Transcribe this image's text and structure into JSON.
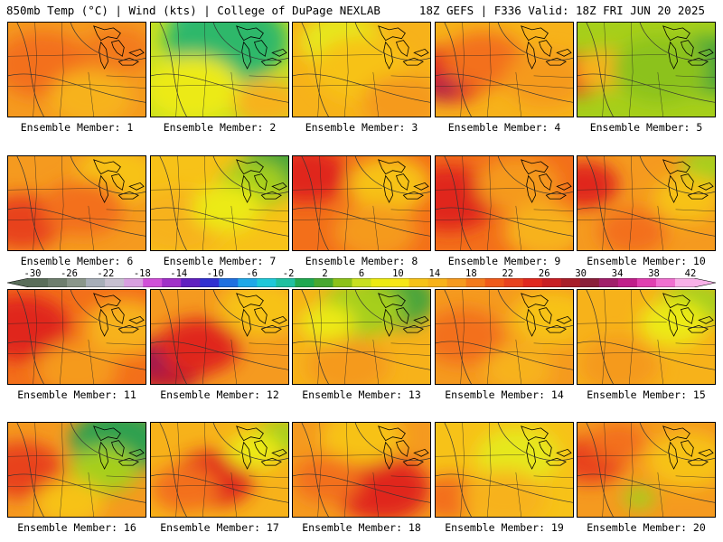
{
  "header": {
    "left": "850mb Temp (°C) | Wind (kts) | College of DuPage NEXLAB",
    "right": "18Z GEFS | F336 Valid: 18Z FRI JUN 20 2025"
  },
  "member_label_prefix": "Ensemble Member: ",
  "members": [
    {
      "label": "Ensemble Member: 1",
      "base": "#f59a1f",
      "blobs": [
        [
          "#f36f1a",
          0.25,
          0.45,
          0.35
        ],
        [
          "#f7b21a",
          0.6,
          0.8,
          0.3
        ],
        [
          "#f37a1c",
          0.8,
          0.3,
          0.25
        ]
      ]
    },
    {
      "label": "Ensemble Member: 2",
      "base": "#c8e020",
      "blobs": [
        [
          "#20c8d8",
          0.5,
          0.0,
          0.35
        ],
        [
          "#2fb86a",
          0.55,
          0.2,
          0.45
        ],
        [
          "#ecea12",
          0.3,
          0.7,
          0.35
        ],
        [
          "#f7b21a",
          0.85,
          0.85,
          0.25
        ]
      ]
    },
    {
      "label": "Ensemble Member: 3",
      "base": "#f7b21a",
      "blobs": [
        [
          "#e6e81a",
          0.35,
          0.2,
          0.3
        ],
        [
          "#f7c218",
          0.5,
          0.5,
          0.35
        ],
        [
          "#f59a1f",
          0.8,
          0.85,
          0.3
        ]
      ]
    },
    {
      "label": "Ensemble Member: 4",
      "base": "#f7b21a",
      "blobs": [
        [
          "#e02a22",
          0.1,
          0.55,
          0.3
        ],
        [
          "#b0204a",
          0.05,
          0.7,
          0.12
        ],
        [
          "#f36f1a",
          0.35,
          0.4,
          0.3
        ],
        [
          "#f59a1f",
          0.8,
          0.6,
          0.3
        ]
      ]
    },
    {
      "label": "Ensemble Member: 5",
      "base": "#a6cf1a",
      "blobs": [
        [
          "#e83a1e",
          0.0,
          0.55,
          0.22
        ],
        [
          "#f7b21a",
          0.2,
          0.5,
          0.22
        ],
        [
          "#49a53a",
          0.95,
          0.45,
          0.3
        ],
        [
          "#8cc21a",
          0.6,
          0.5,
          0.35
        ]
      ]
    },
    {
      "label": "Ensemble Member: 6",
      "base": "#f59a1f",
      "blobs": [
        [
          "#e8421e",
          0.1,
          0.7,
          0.3
        ],
        [
          "#f7c218",
          0.8,
          0.2,
          0.3
        ],
        [
          "#f36f1a",
          0.55,
          0.55,
          0.3
        ]
      ]
    },
    {
      "label": "Ensemble Member: 7",
      "base": "#f7c218",
      "blobs": [
        [
          "#49a53a",
          0.95,
          0.1,
          0.3
        ],
        [
          "#a6cf1a",
          0.75,
          0.3,
          0.25
        ],
        [
          "#f7b21a",
          0.2,
          0.7,
          0.35
        ],
        [
          "#ecea12",
          0.55,
          0.55,
          0.25
        ]
      ]
    },
    {
      "label": "Ensemble Member: 8",
      "base": "#f36f1a",
      "blobs": [
        [
          "#e0281f",
          0.1,
          0.2,
          0.3
        ],
        [
          "#f7c218",
          0.7,
          0.3,
          0.3
        ],
        [
          "#f59a1f",
          0.6,
          0.8,
          0.3
        ]
      ]
    },
    {
      "label": "Ensemble Member: 9",
      "base": "#f36f1a",
      "blobs": [
        [
          "#e0281f",
          0.1,
          0.45,
          0.35
        ],
        [
          "#f59a1f",
          0.6,
          0.3,
          0.3
        ],
        [
          "#f7b21a",
          0.8,
          0.8,
          0.3
        ]
      ]
    },
    {
      "label": "Ensemble Member: 10",
      "base": "#f59a1f",
      "blobs": [
        [
          "#e0281f",
          0.05,
          0.3,
          0.25
        ],
        [
          "#a6cf1a",
          0.95,
          0.1,
          0.2
        ],
        [
          "#f7c218",
          0.8,
          0.45,
          0.25
        ],
        [
          "#f36f1a",
          0.4,
          0.8,
          0.25
        ]
      ]
    },
    {
      "label": "Ensemble Member: 11",
      "base": "#f36f1a",
      "blobs": [
        [
          "#e0281f",
          0.1,
          0.4,
          0.35
        ],
        [
          "#f7b21a",
          0.85,
          0.4,
          0.3
        ],
        [
          "#f59a1f",
          0.5,
          0.85,
          0.3
        ]
      ]
    },
    {
      "label": "Ensemble Member: 12",
      "base": "#f59a1f",
      "blobs": [
        [
          "#c01e2e",
          0.1,
          0.8,
          0.3
        ],
        [
          "#8a1e5a",
          0.05,
          0.75,
          0.12
        ],
        [
          "#e0281f",
          0.35,
          0.6,
          0.3
        ],
        [
          "#f7c218",
          0.8,
          0.2,
          0.3
        ]
      ]
    },
    {
      "label": "Ensemble Member: 13",
      "base": "#f7b21a",
      "blobs": [
        [
          "#49a53a",
          0.75,
          0.1,
          0.3
        ],
        [
          "#a6cf1a",
          0.5,
          0.2,
          0.3
        ],
        [
          "#f59a1f",
          0.4,
          0.8,
          0.3
        ],
        [
          "#ecea12",
          0.25,
          0.35,
          0.2
        ]
      ]
    },
    {
      "label": "Ensemble Member: 14",
      "base": "#f59a1f",
      "blobs": [
        [
          "#f7c218",
          0.85,
          0.3,
          0.3
        ],
        [
          "#f36f1a",
          0.2,
          0.5,
          0.3
        ],
        [
          "#f7b21a",
          0.6,
          0.85,
          0.25
        ]
      ]
    },
    {
      "label": "Ensemble Member: 15",
      "base": "#f7b21a",
      "blobs": [
        [
          "#a6cf1a",
          0.85,
          0.15,
          0.25
        ],
        [
          "#ecea12",
          0.7,
          0.35,
          0.25
        ],
        [
          "#f59a1f",
          0.3,
          0.8,
          0.3
        ]
      ]
    },
    {
      "label": "Ensemble Member: 16",
      "base": "#f59a1f",
      "blobs": [
        [
          "#2fa050",
          0.8,
          0.2,
          0.35
        ],
        [
          "#a6cf1a",
          0.7,
          0.5,
          0.25
        ],
        [
          "#e8421e",
          0.1,
          0.5,
          0.3
        ],
        [
          "#f7c218",
          0.45,
          0.85,
          0.25
        ]
      ]
    },
    {
      "label": "Ensemble Member: 17",
      "base": "#f7b21a",
      "blobs": [
        [
          "#e0281f",
          0.45,
          0.6,
          0.3
        ],
        [
          "#f36f1a",
          0.25,
          0.7,
          0.25
        ],
        [
          "#a6cf1a",
          0.95,
          0.15,
          0.2
        ],
        [
          "#ecea12",
          0.75,
          0.3,
          0.2
        ]
      ]
    },
    {
      "label": "Ensemble Member: 18",
      "base": "#f59a1f",
      "blobs": [
        [
          "#e0281f",
          0.65,
          0.7,
          0.35
        ],
        [
          "#f7c218",
          0.5,
          0.15,
          0.3
        ],
        [
          "#f36f1a",
          0.25,
          0.6,
          0.25
        ]
      ]
    },
    {
      "label": "Ensemble Member: 19",
      "base": "#f7c218",
      "blobs": [
        [
          "#e6e81a",
          0.6,
          0.35,
          0.3
        ],
        [
          "#f36f1a",
          0.1,
          0.8,
          0.25
        ],
        [
          "#f7b21a",
          0.5,
          0.8,
          0.3
        ]
      ]
    },
    {
      "label": "Ensemble Member: 20",
      "base": "#f59a1f",
      "blobs": [
        [
          "#e8421e",
          0.1,
          0.4,
          0.25
        ],
        [
          "#a6cf1a",
          0.45,
          0.8,
          0.12
        ],
        [
          "#f7c218",
          0.8,
          0.4,
          0.3
        ],
        [
          "#f36f1a",
          0.3,
          0.2,
          0.2
        ]
      ]
    }
  ],
  "colorbar": {
    "tick_labels": [
      "-30",
      "-26",
      "-22",
      "-18",
      "-14",
      "-10",
      "-6",
      "-2",
      "2",
      "6",
      "10",
      "14",
      "18",
      "22",
      "26",
      "30",
      "34",
      "38",
      "42"
    ],
    "colors": [
      "#5a6e5a",
      "#6e7e6e",
      "#8a968a",
      "#a7aeb8",
      "#c7c0d0",
      "#d8a0e0",
      "#d050d8",
      "#a030c8",
      "#6020c0",
      "#3030d0",
      "#2070e0",
      "#20a8e8",
      "#20c8d8",
      "#20c0a0",
      "#20a850",
      "#48a830",
      "#8cc21a",
      "#c8e020",
      "#ecea12",
      "#f7e616",
      "#f7c218",
      "#f7b21a",
      "#f59a1f",
      "#f37a1c",
      "#f05a1a",
      "#e8421e",
      "#e0281f",
      "#c81e24",
      "#a81e2a",
      "#8a1e3a",
      "#a01e6a",
      "#c01e8a",
      "#e040b0",
      "#f070d0",
      "#f8b0e8"
    ]
  }
}
